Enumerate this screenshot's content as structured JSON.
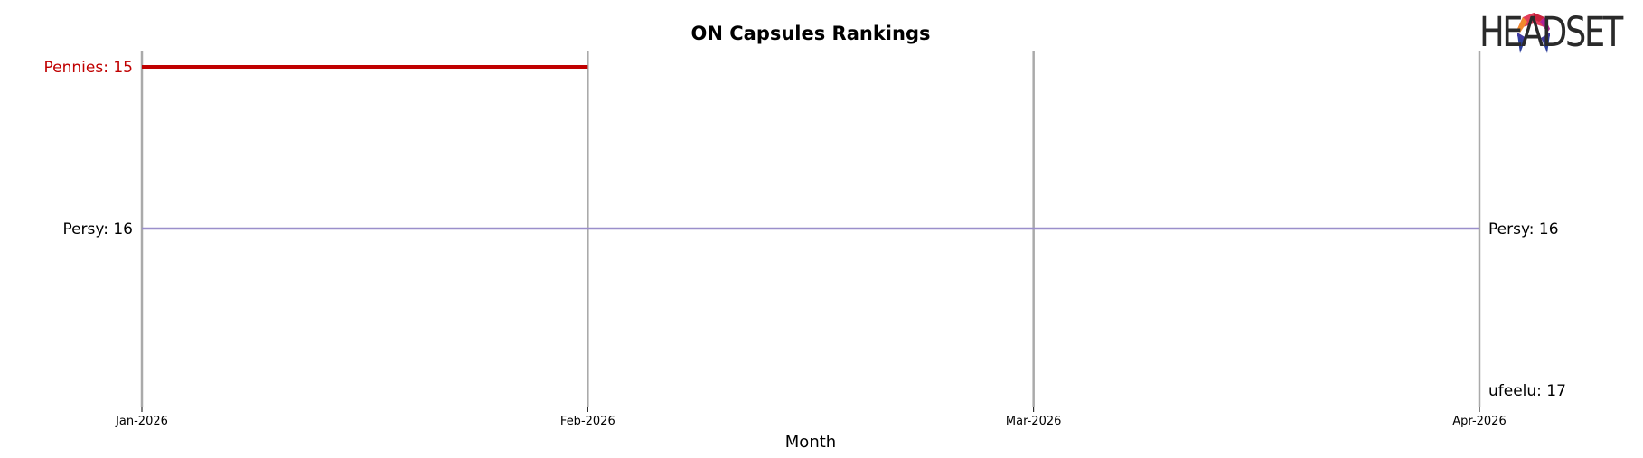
{
  "chart_data": {
    "type": "line",
    "title": "ON Capsules Rankings",
    "xlabel": "Month",
    "ylabel": "",
    "x": [
      "Jan-2026",
      "Feb-2026",
      "Mar-2026",
      "Apr-2026"
    ],
    "y_inverted": true,
    "ylim": [
      17,
      15
    ],
    "series": [
      {
        "name": "Pennies",
        "color": "#c00000",
        "values": [
          15,
          15,
          null,
          null
        ],
        "start_label": "Pennies: 15",
        "end_label": ""
      },
      {
        "name": "Persy",
        "color": "#9b8fcb",
        "values": [
          16,
          16,
          16,
          16
        ],
        "start_label": "Persy: 16",
        "end_label": "Persy: 16"
      },
      {
        "name": "ufeelu",
        "color": "#000000",
        "values": [
          null,
          null,
          null,
          17
        ],
        "start_label": "",
        "end_label": "ufeelu: 17"
      }
    ],
    "grid": {
      "vertical": true,
      "horizontal": false
    }
  },
  "logo": {
    "text": "HEADSET"
  }
}
